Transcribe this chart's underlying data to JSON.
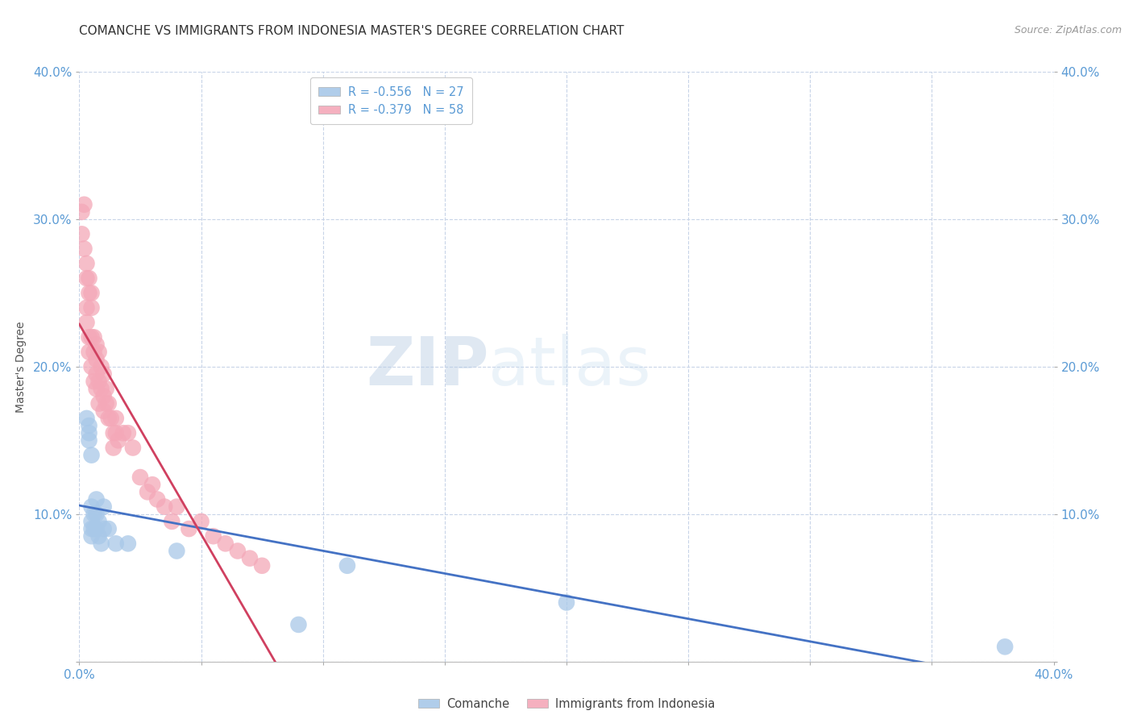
{
  "title": "COMANCHE VS IMMIGRANTS FROM INDONESIA MASTER'S DEGREE CORRELATION CHART",
  "source": "Source: ZipAtlas.com",
  "ylabel": "Master's Degree",
  "xlim": [
    0.0,
    0.4
  ],
  "ylim": [
    0.0,
    0.4
  ],
  "xticks": [
    0.0,
    0.05,
    0.1,
    0.15,
    0.2,
    0.25,
    0.3,
    0.35,
    0.4
  ],
  "yticks": [
    0.0,
    0.1,
    0.2,
    0.3,
    0.4
  ],
  "xticklabels_visible": [
    "0.0%",
    "",
    "",
    "",
    "",
    "",
    "",
    "",
    "40.0%"
  ],
  "yticklabels_left": [
    "",
    "10.0%",
    "20.0%",
    "30.0%",
    "40.0%"
  ],
  "yticklabels_right": [
    "",
    "10.0%",
    "20.0%",
    "30.0%",
    "40.0%"
  ],
  "watermark_zip": "ZIP",
  "watermark_atlas": "atlas",
  "comanche_color": "#a8c8e8",
  "indonesia_color": "#f4a8b8",
  "comanche_line_color": "#4472c4",
  "indonesia_line_color": "#d04060",
  "comanche_x": [
    0.003,
    0.004,
    0.004,
    0.004,
    0.005,
    0.005,
    0.005,
    0.005,
    0.005,
    0.006,
    0.006,
    0.007,
    0.007,
    0.007,
    0.008,
    0.008,
    0.009,
    0.01,
    0.01,
    0.012,
    0.015,
    0.02,
    0.04,
    0.09,
    0.11,
    0.2,
    0.38
  ],
  "comanche_y": [
    0.165,
    0.16,
    0.155,
    0.15,
    0.14,
    0.105,
    0.095,
    0.09,
    0.085,
    0.1,
    0.09,
    0.11,
    0.1,
    0.09,
    0.095,
    0.085,
    0.08,
    0.105,
    0.09,
    0.09,
    0.08,
    0.08,
    0.075,
    0.025,
    0.065,
    0.04,
    0.01
  ],
  "indonesia_x": [
    0.001,
    0.001,
    0.002,
    0.002,
    0.003,
    0.003,
    0.003,
    0.003,
    0.004,
    0.004,
    0.004,
    0.004,
    0.005,
    0.005,
    0.005,
    0.005,
    0.006,
    0.006,
    0.006,
    0.007,
    0.007,
    0.007,
    0.007,
    0.008,
    0.008,
    0.008,
    0.009,
    0.009,
    0.01,
    0.01,
    0.01,
    0.011,
    0.011,
    0.012,
    0.012,
    0.013,
    0.014,
    0.014,
    0.015,
    0.015,
    0.016,
    0.018,
    0.02,
    0.022,
    0.025,
    0.028,
    0.03,
    0.032,
    0.035,
    0.038,
    0.04,
    0.045,
    0.05,
    0.055,
    0.06,
    0.065,
    0.07,
    0.075
  ],
  "indonesia_y": [
    0.305,
    0.29,
    0.31,
    0.28,
    0.27,
    0.26,
    0.24,
    0.23,
    0.26,
    0.25,
    0.22,
    0.21,
    0.25,
    0.24,
    0.22,
    0.2,
    0.22,
    0.21,
    0.19,
    0.215,
    0.205,
    0.195,
    0.185,
    0.21,
    0.19,
    0.175,
    0.2,
    0.185,
    0.195,
    0.18,
    0.17,
    0.185,
    0.175,
    0.175,
    0.165,
    0.165,
    0.155,
    0.145,
    0.165,
    0.155,
    0.15,
    0.155,
    0.155,
    0.145,
    0.125,
    0.115,
    0.12,
    0.11,
    0.105,
    0.095,
    0.105,
    0.09,
    0.095,
    0.085,
    0.08,
    0.075,
    0.07,
    0.065
  ],
  "background_color": "#ffffff",
  "grid_color": "#c8d4e8",
  "title_fontsize": 11,
  "axis_tick_color": "#5b9bd5",
  "axis_tick_fontsize": 11,
  "legend_R_color": "#5b9bd5",
  "legend_N_color": "#5b9bd5"
}
